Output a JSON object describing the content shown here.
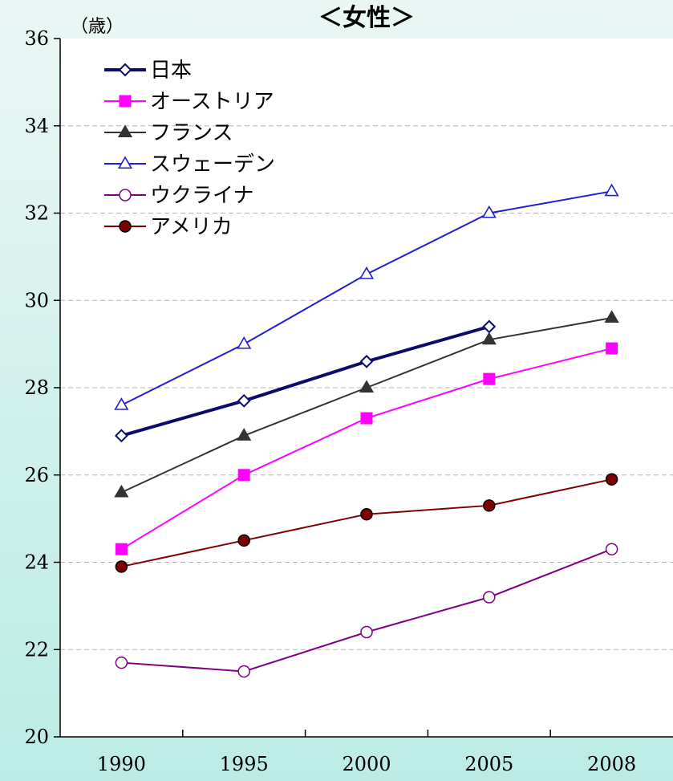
{
  "chart_data": {
    "type": "line",
    "title": "＜女性＞",
    "unit_label": "（歳）",
    "categories": [
      "1990",
      "1995",
      "2000",
      "2005",
      "2008"
    ],
    "ylim": [
      20,
      36
    ],
    "yticks": [
      20,
      22,
      24,
      26,
      28,
      30,
      32,
      34,
      36
    ],
    "grid": true,
    "legend_position": "top-left",
    "series": [
      {
        "name": "日本",
        "values": [
          26.9,
          27.7,
          28.6,
          29.4,
          null
        ],
        "color": "#0b0b6b",
        "marker": "diamond-open",
        "bold": true
      },
      {
        "name": "オーストリア",
        "values": [
          24.3,
          26.0,
          27.3,
          28.2,
          28.9
        ],
        "color": "#ff00ff",
        "marker": "square-filled"
      },
      {
        "name": "フランス",
        "values": [
          25.6,
          26.9,
          28.0,
          29.1,
          29.6
        ],
        "color": "#333333",
        "marker": "triangle-filled"
      },
      {
        "name": "スウェーデン",
        "values": [
          27.6,
          29.0,
          30.6,
          32.0,
          32.5
        ],
        "color": "#1f1fd6",
        "marker": "triangle-open"
      },
      {
        "name": "ウクライナ",
        "values": [
          21.7,
          21.5,
          22.4,
          23.2,
          24.3
        ],
        "color": "#800080",
        "marker": "circle-open"
      },
      {
        "name": "アメリカ",
        "values": [
          23.9,
          24.5,
          25.1,
          25.3,
          25.9
        ],
        "color": "#800000",
        "marker": "circle-filled"
      }
    ]
  }
}
